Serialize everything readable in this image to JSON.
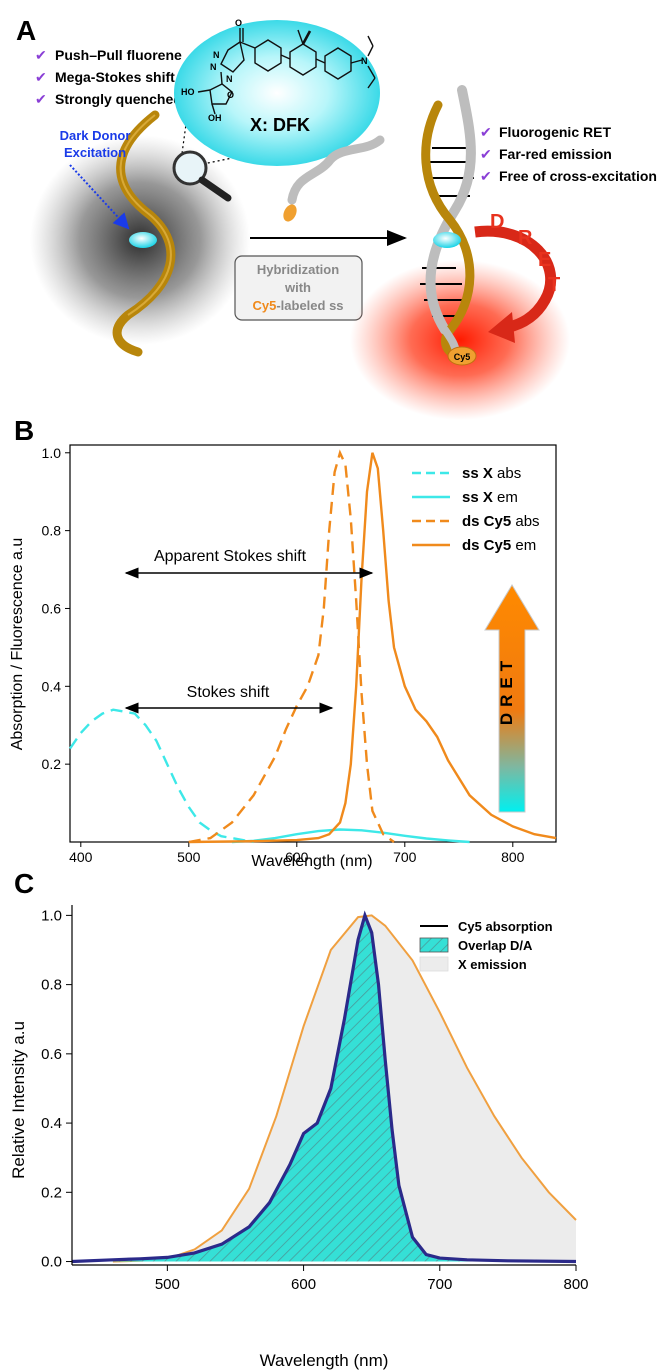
{
  "panelA": {
    "label": "A",
    "left_bullets": [
      "Push–Pull fluorene",
      "Mega-Stokes shift",
      "Strongly quenched"
    ],
    "right_bullets": [
      "Fluorogenic RET",
      "Far-red emission",
      "Free of cross-excitation"
    ],
    "dark_donor": [
      "Dark Donor",
      "Excitation"
    ],
    "bubble_label": "X: DFK",
    "mol_atoms": {
      "n1": "N",
      "n2": "N",
      "n3": "N",
      "ho": "HO",
      "o": "O",
      "oh": "OH",
      "o2": "O",
      "n4": "N"
    },
    "hyb": {
      "line1": "Hybridization",
      "line2": "with",
      "cy5": "Cy5",
      "line3": "-labeled ss"
    },
    "dret_letters": [
      "D",
      "R",
      "E",
      "T"
    ],
    "cy5_tag": "Cy5",
    "colors": {
      "gold": "#b8860b",
      "cyan": "#2ee6f0",
      "red": "#e8321e",
      "check": "#8a3fd6",
      "blue_text": "#1a3be8"
    }
  },
  "panelB": {
    "label": "B",
    "annotations": {
      "apparent": "Apparent Stokes shift",
      "stokes": "Stokes shift",
      "dret": "DRET"
    },
    "legend": [
      {
        "bold": "ss X",
        "rest": " abs"
      },
      {
        "bold": "ss X",
        "rest": " em"
      },
      {
        "bold": "ds Cy5",
        "rest": " abs"
      },
      {
        "bold": "ds Cy5",
        "rest": " em"
      }
    ],
    "colors": {
      "ssx": "#3de8e8",
      "cy5": "#f08a1c"
    }
  },
  "panelC": {
    "label": "C",
    "legend": [
      "Cy5 absorption",
      "Overlap D/A",
      "X emission"
    ],
    "colors": {
      "abs": "#2b2a8a",
      "overlap": "#35e0d6",
      "emission_fill": "#ececec",
      "emission_line": "#f0a040"
    }
  },
  "chart_data": [
    {
      "type": "line",
      "xlabel": "Wavelength (nm)",
      "ylabel": "Absorption / Fluorescence a.u",
      "xlim": [
        390,
        840
      ],
      "ylim": [
        0,
        1.02
      ],
      "xticks": [
        400,
        500,
        600,
        700,
        800
      ],
      "yticks": [
        0.2,
        0.4,
        0.6,
        0.8,
        1.0
      ],
      "series": [
        {
          "name": "ss X abs",
          "dash": true,
          "x": [
            390,
            400,
            410,
            420,
            430,
            440,
            450,
            460,
            470,
            480,
            490,
            500,
            510,
            520,
            530,
            540,
            550,
            560
          ],
          "y": [
            0.24,
            0.28,
            0.31,
            0.33,
            0.34,
            0.335,
            0.33,
            0.3,
            0.26,
            0.2,
            0.14,
            0.09,
            0.05,
            0.03,
            0.015,
            0.01,
            0.005,
            0.0
          ]
        },
        {
          "name": "ss X em",
          "dash": false,
          "x": [
            540,
            560,
            580,
            600,
            620,
            640,
            660,
            680,
            700,
            720,
            740,
            760
          ],
          "y": [
            0.0,
            0.003,
            0.01,
            0.02,
            0.028,
            0.032,
            0.03,
            0.024,
            0.016,
            0.009,
            0.004,
            0.0
          ]
        },
        {
          "name": "ds Cy5 abs",
          "dash": true,
          "x": [
            500,
            520,
            540,
            560,
            580,
            590,
            600,
            610,
            620,
            625,
            630,
            635,
            640,
            645,
            650,
            655,
            660,
            665,
            670,
            680,
            690
          ],
          "y": [
            0.0,
            0.01,
            0.05,
            0.12,
            0.22,
            0.29,
            0.35,
            0.4,
            0.48,
            0.6,
            0.8,
            0.95,
            1.0,
            0.97,
            0.83,
            0.62,
            0.38,
            0.2,
            0.08,
            0.02,
            0.0
          ]
        },
        {
          "name": "ds Cy5 em",
          "dash": false,
          "x": [
            500,
            560,
            600,
            620,
            630,
            640,
            645,
            650,
            655,
            660,
            665,
            670,
            675,
            680,
            685,
            690,
            700,
            710,
            720,
            730,
            740,
            760,
            780,
            800,
            820,
            840
          ],
          "y": [
            0.0,
            0.002,
            0.005,
            0.01,
            0.02,
            0.05,
            0.1,
            0.2,
            0.4,
            0.68,
            0.9,
            1.0,
            0.96,
            0.8,
            0.62,
            0.5,
            0.4,
            0.34,
            0.31,
            0.27,
            0.21,
            0.12,
            0.07,
            0.04,
            0.02,
            0.01
          ]
        }
      ]
    },
    {
      "type": "area",
      "xlabel": "Wavelength (nm)",
      "ylabel": "Relative Intensity a.u",
      "xlim": [
        430,
        800
      ],
      "ylim": [
        -0.01,
        1.03
      ],
      "xticks": [
        500,
        600,
        700,
        800
      ],
      "yticks": [
        0.0,
        0.2,
        0.4,
        0.6,
        0.8,
        1.0
      ],
      "series": [
        {
          "name": "Cy5 absorption",
          "x": [
            430,
            460,
            480,
            500,
            520,
            540,
            560,
            575,
            590,
            600,
            610,
            620,
            630,
            640,
            645,
            650,
            655,
            660,
            665,
            670,
            680,
            690,
            700,
            720,
            750,
            800
          ],
          "y": [
            0.0,
            0.005,
            0.008,
            0.012,
            0.025,
            0.05,
            0.1,
            0.17,
            0.28,
            0.37,
            0.4,
            0.5,
            0.7,
            0.93,
            1.0,
            0.95,
            0.8,
            0.58,
            0.38,
            0.22,
            0.07,
            0.02,
            0.01,
            0.005,
            0.002,
            0.0
          ]
        },
        {
          "name": "X emission",
          "x": [
            460,
            480,
            500,
            520,
            540,
            560,
            580,
            600,
            620,
            640,
            650,
            660,
            680,
            700,
            720,
            740,
            760,
            780,
            800
          ],
          "y": [
            0.0,
            0.002,
            0.008,
            0.035,
            0.09,
            0.21,
            0.42,
            0.68,
            0.9,
            0.995,
            1.0,
            0.97,
            0.87,
            0.72,
            0.56,
            0.42,
            0.3,
            0.2,
            0.12
          ]
        }
      ]
    }
  ]
}
